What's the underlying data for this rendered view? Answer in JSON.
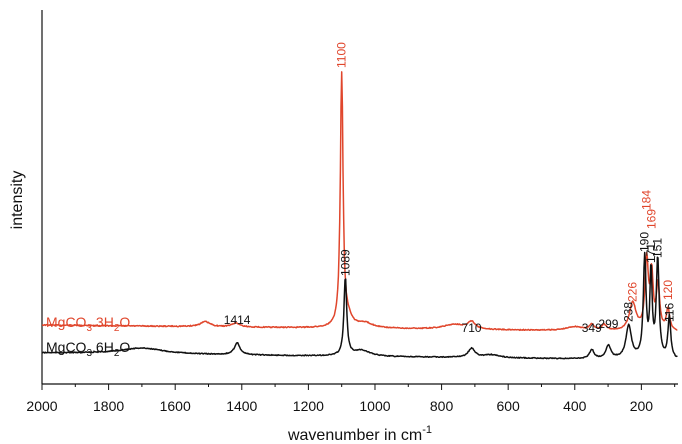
{
  "chart_data": {
    "type": "line",
    "title": "",
    "xlabel": "wavenumber in cm",
    "xlabel_superscript": "-1",
    "ylabel": "intensity",
    "xlim": [
      2000,
      90
    ],
    "x_reversed": true,
    "y_ticks_shown": false,
    "grid": false,
    "xticks": [
      2000,
      1800,
      1600,
      1400,
      1200,
      1000,
      800,
      600,
      400,
      200
    ],
    "xtick_labels": [
      "2000",
      "1800",
      "1600",
      "1400",
      "1200",
      "1000",
      "800",
      "600",
      "400",
      "200"
    ],
    "series": [
      {
        "name_parts": [
          {
            "text": "MgCO",
            "sub": false
          },
          {
            "text": "3",
            "sub": true
          },
          {
            "text": ".3H",
            "sub": false
          },
          {
            "text": "2",
            "sub": true
          },
          {
            "text": "O",
            "sub": false
          }
        ],
        "color": "#e0462c",
        "peaks": [
          {
            "x": 1100,
            "label": "1100"
          },
          {
            "x": 226,
            "label": "226"
          },
          {
            "x": 184,
            "label": "184"
          },
          {
            "x": 169,
            "label": "169"
          },
          {
            "x": 120,
            "label": "120"
          }
        ]
      },
      {
        "name_parts": [
          {
            "text": "MgCO",
            "sub": false
          },
          {
            "text": "3",
            "sub": true
          },
          {
            "text": ".6H",
            "sub": false
          },
          {
            "text": "2",
            "sub": true
          },
          {
            "text": "O",
            "sub": false
          }
        ],
        "color": "#111111",
        "peaks": [
          {
            "x": 1414,
            "label": "1414"
          },
          {
            "x": 1089,
            "label": "1089"
          },
          {
            "x": 710,
            "label": "710"
          },
          {
            "x": 349,
            "label": "349"
          },
          {
            "x": 299,
            "label": "299"
          },
          {
            "x": 238,
            "label": "238"
          },
          {
            "x": 190,
            "label": "190"
          },
          {
            "x": 171,
            "label": "171"
          },
          {
            "x": 151,
            "label": "151"
          },
          {
            "x": 116,
            "label": "116"
          }
        ]
      }
    ]
  }
}
